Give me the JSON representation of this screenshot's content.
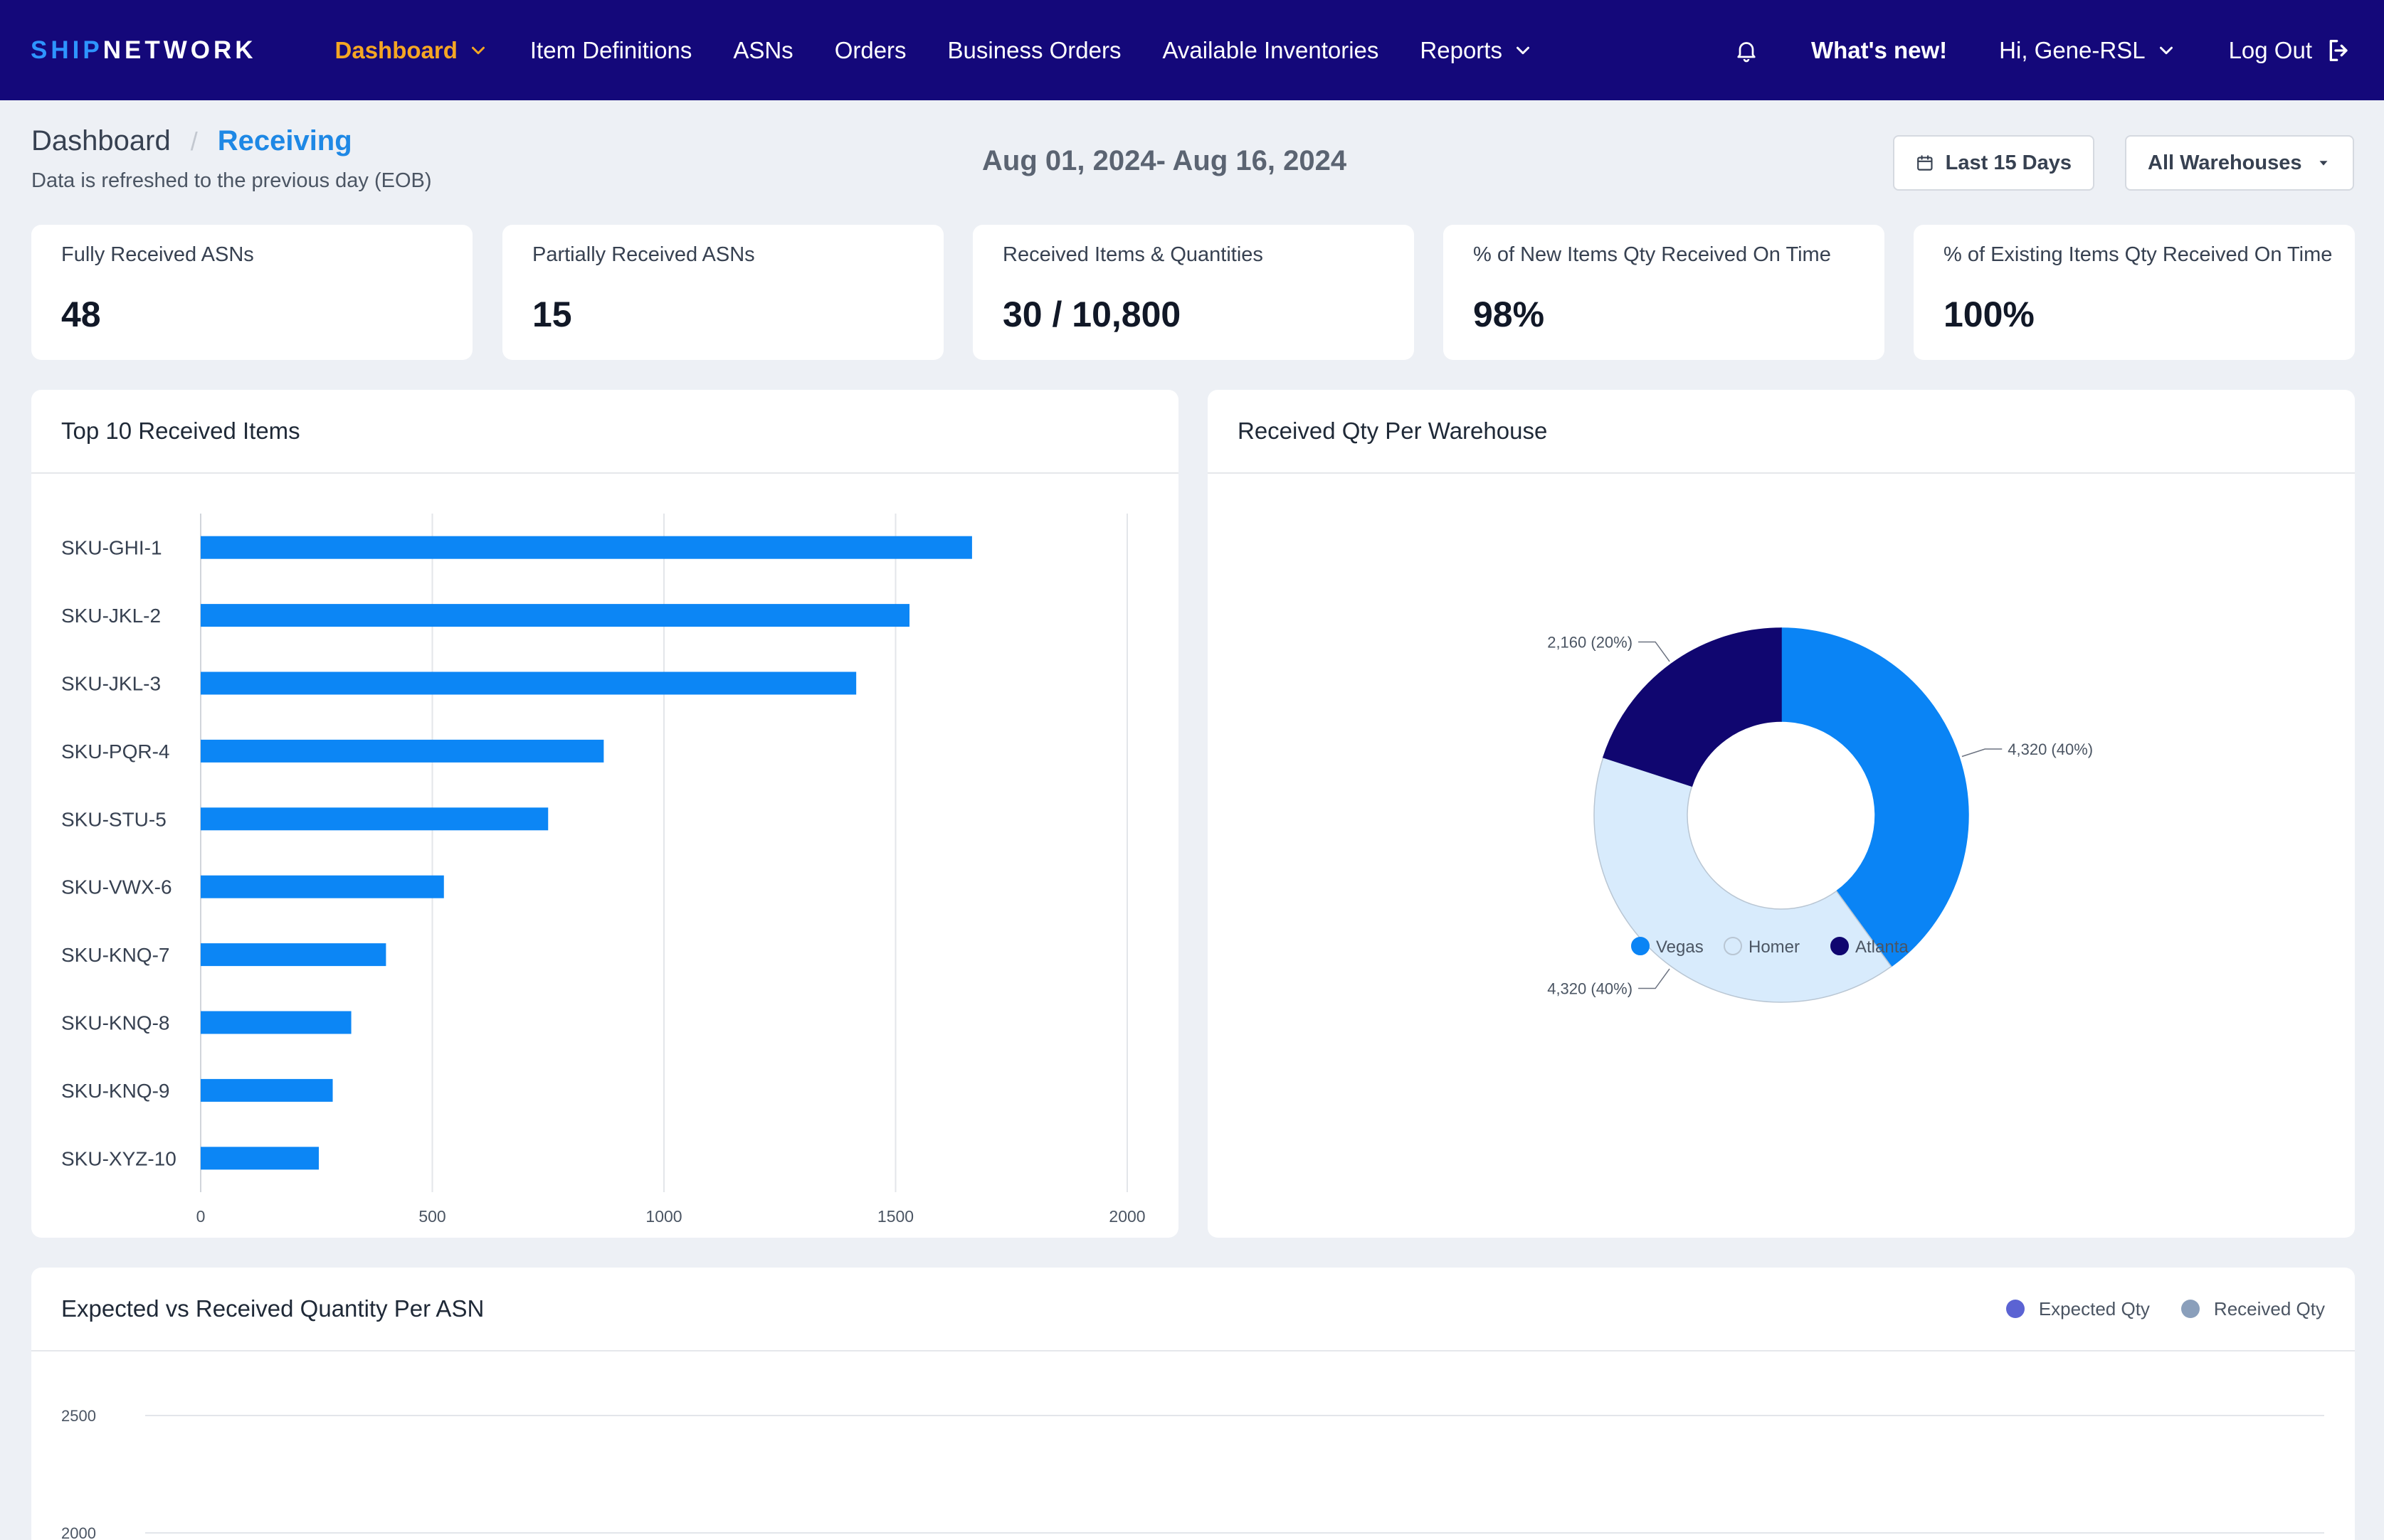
{
  "nav": {
    "logo_a": "SHIP",
    "logo_b": "NETWORK",
    "items": [
      {
        "label": "Dashboard"
      },
      {
        "label": "Item Definitions"
      },
      {
        "label": "ASNs"
      },
      {
        "label": "Orders"
      },
      {
        "label": "Business Orders"
      },
      {
        "label": "Available Inventories"
      },
      {
        "label": "Reports"
      }
    ],
    "whats_new": "What's new!",
    "user": "Hi, Gene-RSL",
    "logout": "Log Out"
  },
  "header": {
    "crumb_root": "Dashboard",
    "crumb_sep": "/",
    "crumb_current": "Receiving",
    "subtitle": "Data is refreshed to the previous day (EOB)",
    "date_range": "Aug 01, 2024- Aug 16, 2024",
    "range_button": "Last 15 Days",
    "warehouse_select": "All Warehouses"
  },
  "kpis": [
    {
      "label": "Fully Received ASNs",
      "value": "48"
    },
    {
      "label": "Partially Received ASNs",
      "value": "15"
    },
    {
      "label": "Received Items & Quantities",
      "value": "30 / 10,800"
    },
    {
      "label": "% of New Items Qty Received On Time",
      "value": "98%"
    },
    {
      "label": "% of Existing Items Qty Received On Time",
      "value": "100%"
    }
  ],
  "panels": {
    "top_items_title": "Top 10 Received Items",
    "warehouse_title": "Received Qty Per Warehouse",
    "asn_title": "Expected vs Received Quantity Per ASN"
  },
  "colors": {
    "nav_bg": "#14087a",
    "accent": "#f5a623",
    "bar": "#0c86f5",
    "vegas": "#0a84f5",
    "homer": "#d8ebfc",
    "atlanta": "#100670",
    "expected": "#5b63d3",
    "received": "#8a9fbb"
  },
  "chart_data": [
    {
      "type": "bar",
      "orientation": "horizontal",
      "title": "Top 10 Received Items",
      "categories": [
        "SKU-GHI-1",
        "SKU-JKL-2",
        "SKU-JKL-3",
        "SKU-PQR-4",
        "SKU-STU-5",
        "SKU-VWX-6",
        "SKU-KNQ-7",
        "SKU-KNQ-8",
        "SKU-KNQ-9",
        "SKU-XYZ-10"
      ],
      "values": [
        1665,
        1530,
        1415,
        870,
        750,
        525,
        400,
        325,
        285,
        255
      ],
      "xlim": [
        0,
        2000
      ],
      "xticks": [
        0,
        500,
        1000,
        1500,
        2000
      ],
      "grid": true
    },
    {
      "type": "pie",
      "style": "donut",
      "title": "Received Qty Per Warehouse",
      "slices": [
        {
          "name": "Vegas",
          "value": 4320,
          "label": "4,320 (40%)"
        },
        {
          "name": "Homer",
          "value": 4320,
          "label": "4,320 (40%)"
        },
        {
          "name": "Atlanta",
          "value": 2160,
          "label": "2,160 (20%)"
        }
      ],
      "legend": "bottom"
    },
    {
      "type": "bar",
      "title": "Expected vs Received Quantity Per ASN",
      "series": [
        {
          "name": "Expected Qty",
          "values": []
        },
        {
          "name": "Received Qty",
          "values": []
        }
      ],
      "yticks": [
        2500,
        2000
      ],
      "legend": "top-right"
    }
  ]
}
